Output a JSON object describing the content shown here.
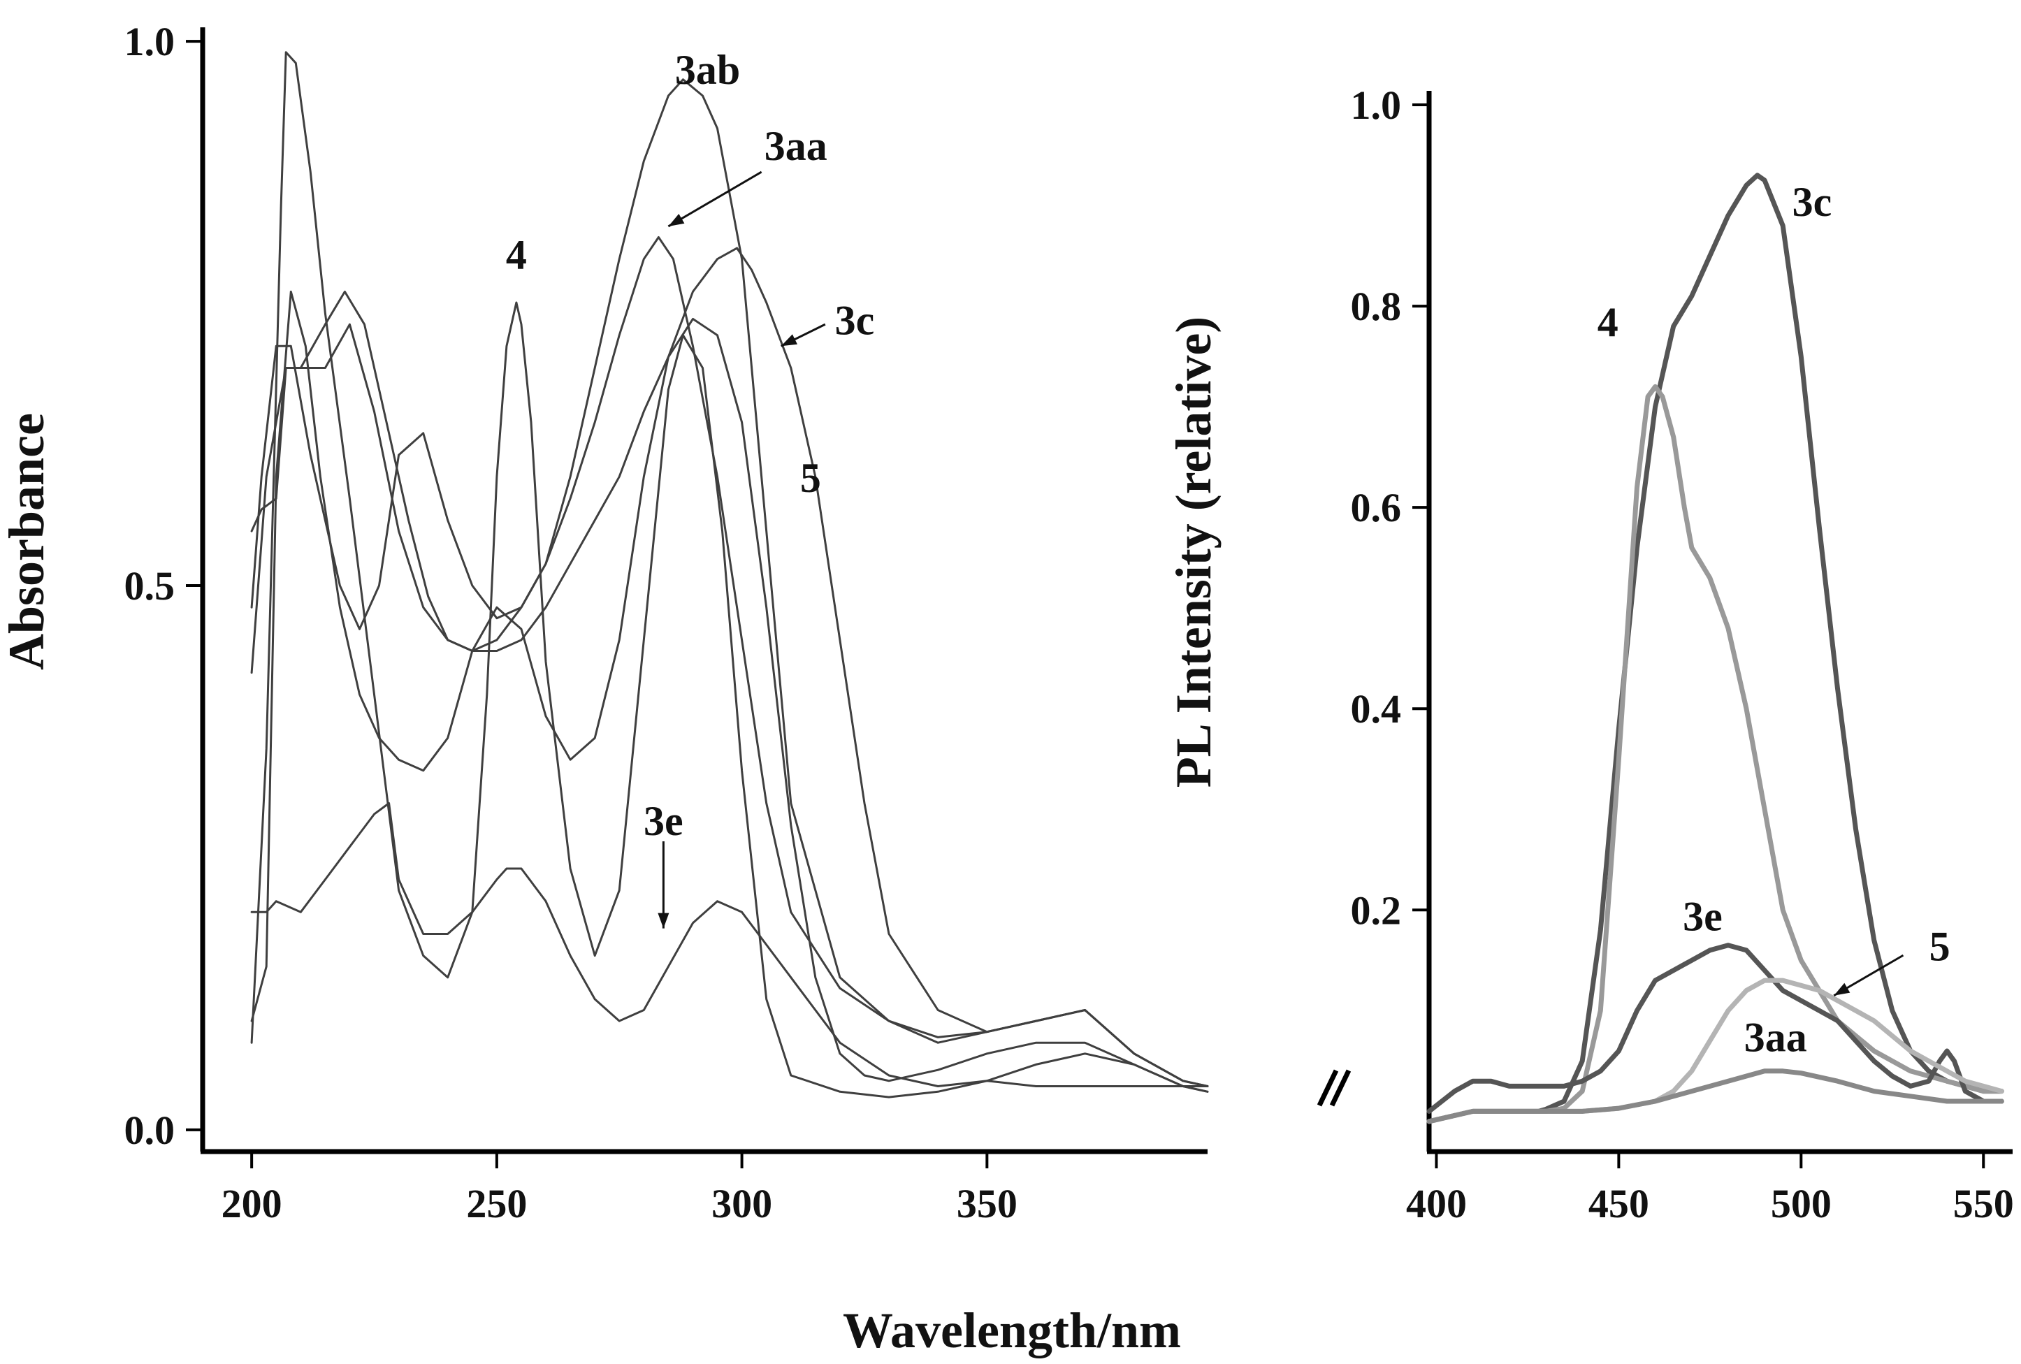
{
  "x_axis_title": "Wavelength/nm",
  "colors": {
    "abs_line": "#3f3f3f",
    "pl_dark": "#555555",
    "pl_mid": "#999999",
    "pl_light": "#b4b4b4",
    "pl_grey": "#888888",
    "axis": "#000000"
  },
  "chart_data": [
    {
      "type": "line",
      "panel": "absorbance",
      "title": "",
      "xlabel": "Wavelength/nm",
      "ylabel": "Absorbance",
      "xlim": [
        190,
        395
      ],
      "ylim": [
        -0.02,
        1.02
      ],
      "xticks": [
        200,
        250,
        300,
        350
      ],
      "xtick_labels": [
        "200",
        "250",
        "300",
        "350"
      ],
      "yticks": [
        0.0,
        0.5,
        1.0
      ],
      "ytick_labels": [
        "0.0",
        "0.5",
        "1.0"
      ],
      "series": [
        {
          "name": "3ab",
          "x": [
            200,
            202,
            205,
            207,
            210,
            215,
            220,
            225,
            230,
            235,
            240,
            245,
            250,
            255,
            260,
            265,
            270,
            275,
            280,
            285,
            288,
            292,
            295,
            300,
            305,
            310,
            320,
            330,
            340,
            350,
            360,
            370,
            380,
            390,
            395
          ],
          "y": [
            0.55,
            0.57,
            0.58,
            0.7,
            0.7,
            0.7,
            0.74,
            0.66,
            0.55,
            0.48,
            0.45,
            0.44,
            0.45,
            0.48,
            0.52,
            0.6,
            0.7,
            0.8,
            0.89,
            0.95,
            0.965,
            0.95,
            0.92,
            0.8,
            0.55,
            0.3,
            0.14,
            0.1,
            0.085,
            0.09,
            0.1,
            0.11,
            0.07,
            0.045,
            0.04
          ]
        },
        {
          "name": "3aa",
          "x": [
            200,
            202,
            205,
            208,
            212,
            218,
            222,
            226,
            230,
            235,
            240,
            245,
            250,
            255,
            260,
            265,
            270,
            275,
            280,
            283,
            286,
            290,
            295,
            300,
            305,
            310,
            320,
            330,
            340,
            350,
            360,
            370,
            380,
            390,
            395
          ],
          "y": [
            0.48,
            0.6,
            0.72,
            0.72,
            0.62,
            0.5,
            0.46,
            0.5,
            0.62,
            0.64,
            0.56,
            0.5,
            0.47,
            0.48,
            0.52,
            0.58,
            0.65,
            0.73,
            0.8,
            0.82,
            0.8,
            0.72,
            0.6,
            0.45,
            0.3,
            0.2,
            0.13,
            0.1,
            0.08,
            0.09,
            0.1,
            0.11,
            0.07,
            0.045,
            0.04
          ]
        },
        {
          "name": "3c",
          "x": [
            200,
            203,
            205,
            208,
            211,
            214,
            218,
            222,
            226,
            230,
            235,
            240,
            245,
            250,
            255,
            260,
            265,
            270,
            275,
            280,
            285,
            290,
            295,
            299,
            302,
            305,
            310,
            315,
            320,
            325,
            330,
            340,
            350,
            360,
            370,
            380,
            390,
            395
          ],
          "y": [
            0.1,
            0.15,
            0.6,
            0.77,
            0.72,
            0.6,
            0.48,
            0.4,
            0.36,
            0.34,
            0.33,
            0.36,
            0.44,
            0.48,
            0.46,
            0.38,
            0.34,
            0.36,
            0.45,
            0.6,
            0.71,
            0.77,
            0.8,
            0.81,
            0.79,
            0.76,
            0.7,
            0.6,
            0.45,
            0.3,
            0.18,
            0.11,
            0.09,
            0.1,
            0.11,
            0.07,
            0.045,
            0.04
          ]
        },
        {
          "name": "4",
          "x": [
            200,
            203,
            206,
            207,
            209,
            212,
            215,
            220,
            225,
            230,
            235,
            240,
            245,
            248,
            250,
            252,
            254,
            255,
            257,
            260,
            265,
            270,
            275,
            280,
            285,
            288,
            292,
            296,
            300,
            305,
            310,
            320,
            330,
            340,
            350,
            360,
            370,
            380,
            390,
            395
          ],
          "y": [
            0.08,
            0.35,
            0.85,
            0.99,
            0.98,
            0.88,
            0.75,
            0.58,
            0.4,
            0.22,
            0.16,
            0.14,
            0.2,
            0.4,
            0.6,
            0.72,
            0.76,
            0.74,
            0.65,
            0.43,
            0.24,
            0.16,
            0.22,
            0.45,
            0.68,
            0.73,
            0.7,
            0.55,
            0.33,
            0.12,
            0.05,
            0.035,
            0.03,
            0.035,
            0.045,
            0.04,
            0.04,
            0.04,
            0.04,
            0.04
          ]
        },
        {
          "name": "5",
          "x": [
            200,
            203,
            207,
            210,
            215,
            219,
            223,
            228,
            232,
            236,
            240,
            245,
            250,
            255,
            260,
            265,
            270,
            275,
            280,
            285,
            290,
            295,
            300,
            305,
            310,
            315,
            320,
            325,
            330,
            340,
            350,
            360,
            370,
            380,
            390,
            395
          ],
          "y": [
            0.42,
            0.6,
            0.7,
            0.7,
            0.74,
            0.77,
            0.74,
            0.64,
            0.56,
            0.49,
            0.45,
            0.44,
            0.44,
            0.45,
            0.48,
            0.52,
            0.56,
            0.6,
            0.66,
            0.71,
            0.745,
            0.73,
            0.65,
            0.48,
            0.28,
            0.14,
            0.07,
            0.05,
            0.045,
            0.055,
            0.07,
            0.08,
            0.08,
            0.06,
            0.04,
            0.035
          ]
        },
        {
          "name": "3e",
          "x": [
            200,
            203,
            205,
            210,
            215,
            220,
            225,
            228,
            230,
            235,
            240,
            245,
            250,
            252,
            255,
            260,
            265,
            270,
            275,
            280,
            285,
            290,
            295,
            300,
            305,
            310,
            315,
            320,
            330,
            340,
            350,
            360,
            370,
            380,
            390,
            395
          ],
          "y": [
            0.2,
            0.2,
            0.21,
            0.2,
            0.23,
            0.26,
            0.29,
            0.3,
            0.23,
            0.18,
            0.18,
            0.2,
            0.23,
            0.24,
            0.24,
            0.21,
            0.16,
            0.12,
            0.1,
            0.11,
            0.15,
            0.19,
            0.21,
            0.2,
            0.17,
            0.14,
            0.11,
            0.08,
            0.05,
            0.04,
            0.045,
            0.06,
            0.07,
            0.06,
            0.04,
            0.035
          ]
        }
      ],
      "annotations": [
        {
          "text": "3ab",
          "x": 293,
          "y": 0.975,
          "arrow": false
        },
        {
          "text": "3aa",
          "x": 311,
          "y": 0.905,
          "arrow": true,
          "arrow_from": [
            304,
            0.88
          ],
          "arrow_to": [
            285,
            0.83
          ]
        },
        {
          "text": "4",
          "x": 254,
          "y": 0.805,
          "arrow": false
        },
        {
          "text": "3c",
          "x": 323,
          "y": 0.745,
          "arrow": true,
          "arrow_from": [
            317,
            0.74
          ],
          "arrow_to": [
            308,
            0.72
          ]
        },
        {
          "text": "5",
          "x": 314,
          "y": 0.6,
          "arrow": false
        },
        {
          "text": "3e",
          "x": 284,
          "y": 0.285,
          "arrow": true,
          "arrow_from": [
            284,
            0.265
          ],
          "arrow_to": [
            284,
            0.185
          ]
        }
      ]
    },
    {
      "type": "line",
      "panel": "photoluminescence",
      "title": "",
      "xlabel": "Wavelength/nm",
      "ylabel": "PL Intensity (relative)",
      "xlim": [
        398,
        558
      ],
      "ylim": [
        -0.04,
        1.05
      ],
      "xticks": [
        400,
        450,
        500,
        550
      ],
      "xtick_labels": [
        "400",
        "450",
        "500",
        "550"
      ],
      "yticks": [
        0.2,
        0.4,
        0.6,
        0.8,
        1.0
      ],
      "ytick_labels": [
        "0.2",
        "0.4",
        "0.6",
        "0.8",
        "1.0"
      ],
      "series": [
        {
          "name": "3c",
          "x": [
            398,
            410,
            420,
            428,
            430,
            435,
            440,
            445,
            450,
            455,
            460,
            465,
            470,
            475,
            480,
            485,
            488,
            490,
            495,
            500,
            505,
            510,
            515,
            520,
            525,
            530,
            535,
            540,
            545,
            550,
            555
          ],
          "y": [
            -0.01,
            0.0,
            0.0,
            0.0,
            0.002,
            0.01,
            0.05,
            0.18,
            0.38,
            0.56,
            0.7,
            0.78,
            0.81,
            0.85,
            0.89,
            0.92,
            0.93,
            0.925,
            0.88,
            0.75,
            0.58,
            0.42,
            0.28,
            0.17,
            0.1,
            0.06,
            0.04,
            0.03,
            0.025,
            0.02,
            0.02
          ]
        },
        {
          "name": "4",
          "x": [
            398,
            410,
            420,
            430,
            435,
            440,
            445,
            450,
            455,
            458,
            460,
            462,
            465,
            468,
            470,
            475,
            480,
            485,
            490,
            495,
            500,
            510,
            520,
            530,
            540,
            550,
            555
          ],
          "y": [
            -0.01,
            0.0,
            0.0,
            0.0,
            0.003,
            0.02,
            0.1,
            0.35,
            0.62,
            0.71,
            0.72,
            0.71,
            0.67,
            0.6,
            0.56,
            0.53,
            0.48,
            0.4,
            0.3,
            0.2,
            0.15,
            0.09,
            0.06,
            0.04,
            0.03,
            0.02,
            0.02
          ]
        },
        {
          "name": "3e",
          "x": [
            398,
            405,
            410,
            415,
            420,
            425,
            430,
            435,
            440,
            445,
            450,
            455,
            460,
            465,
            470,
            475,
            480,
            485,
            490,
            495,
            500,
            505,
            510,
            515,
            520,
            525,
            530,
            535,
            538,
            540,
            542,
            545,
            550,
            555
          ],
          "y": [
            0.0,
            0.02,
            0.03,
            0.03,
            0.025,
            0.025,
            0.025,
            0.025,
            0.03,
            0.04,
            0.06,
            0.1,
            0.13,
            0.14,
            0.15,
            0.16,
            0.165,
            0.16,
            0.14,
            0.12,
            0.11,
            0.1,
            0.09,
            0.07,
            0.05,
            0.035,
            0.025,
            0.03,
            0.05,
            0.06,
            0.05,
            0.02,
            0.01,
            0.01
          ]
        },
        {
          "name": "5",
          "x": [
            398,
            410,
            420,
            430,
            440,
            450,
            460,
            465,
            470,
            475,
            480,
            485,
            490,
            495,
            500,
            505,
            510,
            515,
            520,
            525,
            530,
            535,
            540,
            545,
            550,
            555
          ],
          "y": [
            -0.01,
            0.0,
            0.0,
            0.0,
            0.0,
            0.003,
            0.01,
            0.02,
            0.04,
            0.07,
            0.1,
            0.12,
            0.13,
            0.13,
            0.125,
            0.12,
            0.11,
            0.1,
            0.09,
            0.075,
            0.06,
            0.05,
            0.04,
            0.03,
            0.025,
            0.02
          ]
        },
        {
          "name": "3aa",
          "x": [
            398,
            410,
            420,
            430,
            440,
            450,
            460,
            470,
            480,
            490,
            495,
            500,
            510,
            520,
            530,
            540,
            550,
            555
          ],
          "y": [
            -0.01,
            0.0,
            0.0,
            0.0,
            0.0,
            0.003,
            0.01,
            0.02,
            0.03,
            0.04,
            0.04,
            0.038,
            0.03,
            0.02,
            0.015,
            0.01,
            0.01,
            0.01
          ]
        }
      ],
      "annotations": [
        {
          "text": "3c",
          "x": 503,
          "y": 0.905,
          "arrow": false
        },
        {
          "text": "4",
          "x": 447,
          "y": 0.785,
          "arrow": false
        },
        {
          "text": "3e",
          "x": 473,
          "y": 0.195,
          "arrow": false
        },
        {
          "text": "5",
          "x": 538,
          "y": 0.165,
          "arrow": true,
          "arrow_from": [
            528,
            0.155
          ],
          "arrow_to": [
            509,
            0.115
          ]
        },
        {
          "text": "3aa",
          "x": 493,
          "y": 0.075,
          "arrow": false
        }
      ]
    }
  ]
}
